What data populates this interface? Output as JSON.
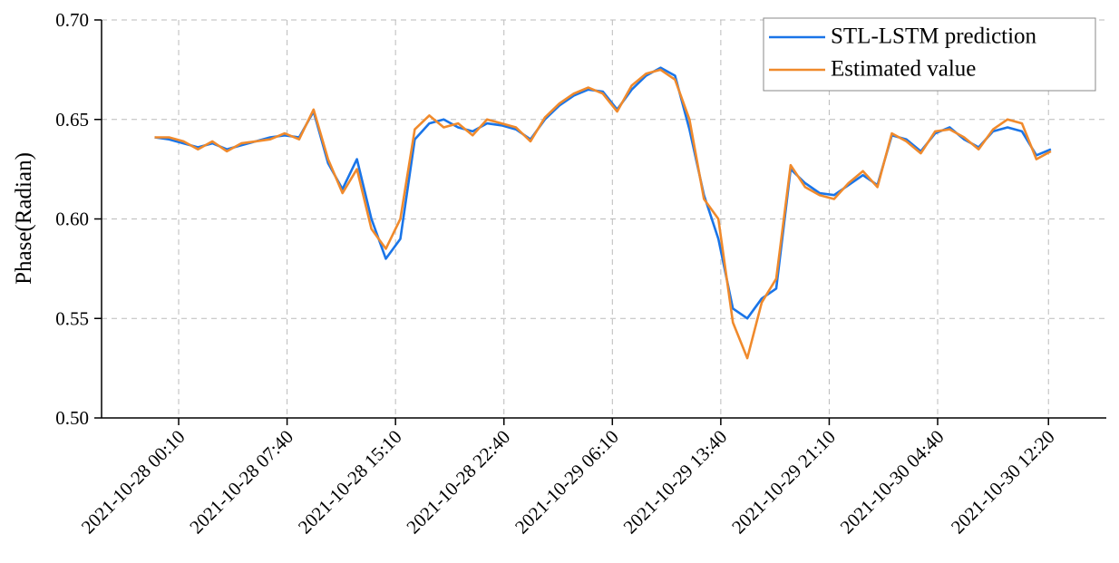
{
  "chart_data": {
    "type": "line",
    "y_label": "Phase(Radian)",
    "x": [
      "2021-10-27 22:30",
      "2021-10-27 23:30",
      "2021-10-28 00:30",
      "2021-10-28 01:30",
      "2021-10-28 02:30",
      "2021-10-28 03:30",
      "2021-10-28 04:30",
      "2021-10-28 05:30",
      "2021-10-28 06:30",
      "2021-10-28 07:30",
      "2021-10-28 08:30",
      "2021-10-28 09:30",
      "2021-10-28 10:30",
      "2021-10-28 11:30",
      "2021-10-28 12:30",
      "2021-10-28 13:30",
      "2021-10-28 14:30",
      "2021-10-28 15:30",
      "2021-10-28 16:30",
      "2021-10-28 17:30",
      "2021-10-28 18:30",
      "2021-10-28 19:30",
      "2021-10-28 20:30",
      "2021-10-28 21:30",
      "2021-10-28 22:30",
      "2021-10-28 23:30",
      "2021-10-29 00:30",
      "2021-10-29 01:30",
      "2021-10-29 02:30",
      "2021-10-29 03:30",
      "2021-10-29 04:30",
      "2021-10-29 05:30",
      "2021-10-29 06:30",
      "2021-10-29 07:30",
      "2021-10-29 08:30",
      "2021-10-29 09:30",
      "2021-10-29 10:30",
      "2021-10-29 11:30",
      "2021-10-29 12:30",
      "2021-10-29 13:30",
      "2021-10-29 14:30",
      "2021-10-29 15:30",
      "2021-10-29 16:30",
      "2021-10-29 17:30",
      "2021-10-29 18:30",
      "2021-10-29 19:30",
      "2021-10-29 20:30",
      "2021-10-29 21:30",
      "2021-10-29 22:30",
      "2021-10-29 23:30",
      "2021-10-30 00:30",
      "2021-10-30 01:30",
      "2021-10-30 02:30",
      "2021-10-30 03:30",
      "2021-10-30 04:30",
      "2021-10-30 05:30",
      "2021-10-30 06:30",
      "2021-10-30 07:30",
      "2021-10-30 08:30",
      "2021-10-30 09:30",
      "2021-10-30 10:30",
      "2021-10-30 11:30",
      "2021-10-30 12:30"
    ],
    "series": [
      {
        "name": "STL-LSTM prediction",
        "color": "#1a75e8",
        "values": [
          0.641,
          0.64,
          0.638,
          0.636,
          0.638,
          0.635,
          0.637,
          0.639,
          0.641,
          0.642,
          0.641,
          0.654,
          0.628,
          0.615,
          0.63,
          0.6,
          0.58,
          0.59,
          0.64,
          0.648,
          0.65,
          0.646,
          0.644,
          0.648,
          0.647,
          0.645,
          0.64,
          0.65,
          0.657,
          0.662,
          0.665,
          0.664,
          0.655,
          0.665,
          0.672,
          0.676,
          0.672,
          0.645,
          0.612,
          0.59,
          0.555,
          0.55,
          0.56,
          0.565,
          0.625,
          0.618,
          0.613,
          0.612,
          0.617,
          0.622,
          0.617,
          0.642,
          0.64,
          0.634,
          0.643,
          0.646,
          0.64,
          0.636,
          0.644,
          0.646,
          0.644,
          0.632,
          0.635
        ]
      },
      {
        "name": "Estimated value",
        "color": "#f08a2c",
        "values": [
          0.641,
          0.641,
          0.639,
          0.635,
          0.639,
          0.634,
          0.638,
          0.639,
          0.64,
          0.643,
          0.64,
          0.655,
          0.63,
          0.613,
          0.625,
          0.595,
          0.585,
          0.6,
          0.645,
          0.652,
          0.646,
          0.648,
          0.642,
          0.65,
          0.648,
          0.646,
          0.639,
          0.651,
          0.658,
          0.663,
          0.666,
          0.663,
          0.654,
          0.667,
          0.673,
          0.675,
          0.67,
          0.65,
          0.61,
          0.6,
          0.548,
          0.53,
          0.558,
          0.57,
          0.627,
          0.616,
          0.612,
          0.61,
          0.618,
          0.624,
          0.616,
          0.643,
          0.639,
          0.633,
          0.644,
          0.645,
          0.641,
          0.635,
          0.645,
          0.65,
          0.648,
          0.63,
          0.634
        ]
      }
    ],
    "xlim": [
      "2021-10-27 18:50",
      "2021-10-30 16:20"
    ],
    "xticks": [
      "2021-10-28 00:10",
      "2021-10-28 07:40",
      "2021-10-28 15:10",
      "2021-10-28 22:40",
      "2021-10-29 06:10",
      "2021-10-29 13:40",
      "2021-10-29 21:10",
      "2021-10-30 04:40",
      "2021-10-30 12:20"
    ],
    "ylim": [
      0.5,
      0.7
    ],
    "yticks": [
      {
        "value": 0.5,
        "label": "0.50"
      },
      {
        "value": 0.55,
        "label": "0.55"
      },
      {
        "value": 0.6,
        "label": "0.60"
      },
      {
        "value": 0.65,
        "label": "0.65"
      },
      {
        "value": 0.7,
        "label": "0.70"
      }
    ],
    "grid": true,
    "legend": "upper right"
  }
}
